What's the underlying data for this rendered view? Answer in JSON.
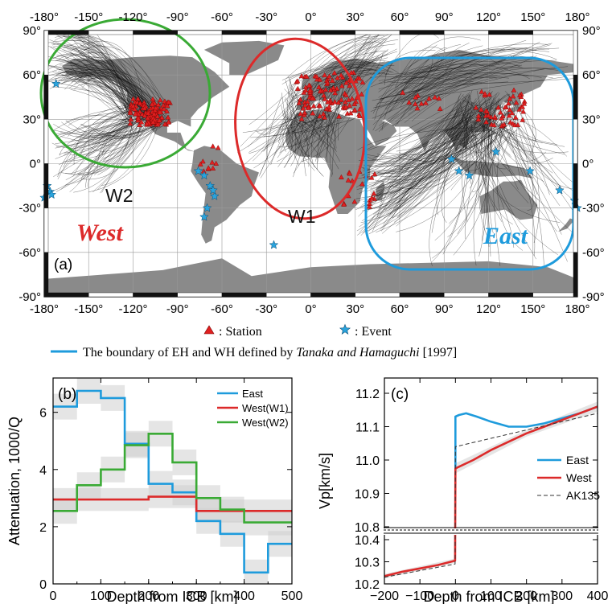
{
  "colors": {
    "land": "#8a8a8a",
    "ocean": "#ffffff",
    "paths": "#111111",
    "station": "#e02020",
    "event": "#2aa3dc",
    "east": "#1e9bdc",
    "west": "#dc2a2a",
    "w2": "#3aaa35",
    "uncertainty": "#cfcfcf"
  },
  "map": {
    "panel_label": "(a)",
    "lon_ticks": [
      "-180°",
      "-150°",
      "-120°",
      "-90°",
      "-60°",
      "-30°",
      "0°",
      "30°",
      "60°",
      "90°",
      "120°",
      "150°",
      "180°"
    ],
    "lat_ticks": [
      "90°",
      "60°",
      "30°",
      "0°",
      "-30°",
      "-60°",
      "-90°"
    ],
    "region_labels": {
      "w1": "W1",
      "w2": "W2",
      "west": "West",
      "east": "East"
    },
    "legend": {
      "station_label": ": Station",
      "event_label": ": Event",
      "boundary_text": "The boundary of EH and WH defined by ",
      "boundary_ref_authors": "Tanaka and Hamaguchi",
      "boundary_ref_year": " [1997]"
    }
  },
  "chart_data": [
    {
      "type": "line",
      "panel_label": "(b)",
      "xlabel": "Depth from ICB [km]",
      "ylabel": "Attenuation, 1000/Q",
      "xlim": [
        0,
        500
      ],
      "ylim": [
        0,
        7.2
      ],
      "x_ticks": [
        0,
        100,
        200,
        300,
        400,
        500
      ],
      "y_ticks": [
        0,
        2,
        4,
        6
      ],
      "step": true,
      "bin_edges": [
        0,
        50,
        100,
        150,
        200,
        250,
        300,
        350,
        400,
        450,
        500
      ],
      "series": [
        {
          "name": "East",
          "color": "#1e9bdc",
          "values": [
            6.2,
            6.75,
            6.5,
            4.9,
            3.5,
            3.2,
            2.2,
            1.75,
            0.4,
            1.4
          ],
          "band": 0.45
        },
        {
          "name": "West(W1)",
          "color": "#dc2a2a",
          "values": [
            2.95,
            2.95,
            2.95,
            2.95,
            3.05,
            3.05,
            2.55,
            2.55,
            2.55,
            2.55
          ],
          "band": 0.4
        },
        {
          "name": "West(W2)",
          "color": "#3aaa35",
          "values": [
            2.55,
            3.45,
            4.0,
            4.85,
            5.25,
            4.25,
            3.0,
            2.6,
            2.15,
            2.15
          ],
          "band": 0.45
        }
      ],
      "legend_position": "top-right",
      "grid": false
    },
    {
      "type": "line",
      "panel_label": "(c)",
      "xlabel": "Depth from ICB [km]",
      "ylabel": "Vp[km/s]",
      "xlim": [
        -200,
        400
      ],
      "x_ticks": [
        -200,
        -100,
        0,
        100,
        200,
        300,
        400
      ],
      "y_ticks_upper": [
        "10.8",
        "10.9",
        "11.0",
        "11.1",
        "11.2"
      ],
      "y_ticks_lower": [
        "10.2",
        "10.3",
        "10.4"
      ],
      "y_break": true,
      "series": [
        {
          "name": "East",
          "color": "#1e9bdc",
          "x": [
            0,
            0,
            10,
            30,
            60,
            100,
            150,
            200,
            250,
            300,
            350,
            400
          ],
          "y": [
            10.97,
            11.13,
            11.135,
            11.14,
            11.13,
            11.115,
            11.1,
            11.1,
            11.11,
            11.125,
            11.14,
            11.16
          ]
        },
        {
          "name": "West",
          "color": "#dc2a2a",
          "x": [
            -200,
            -150,
            -100,
            -50,
            -1,
            0,
            50,
            100,
            150,
            200,
            250,
            300,
            350,
            400
          ],
          "y": [
            10.235,
            10.255,
            10.27,
            10.285,
            10.305,
            10.975,
            11.0,
            11.03,
            11.055,
            11.08,
            11.1,
            11.12,
            11.14,
            11.16
          ]
        },
        {
          "name": "AK135",
          "color": "#333333",
          "dashed": true,
          "x": [
            -200,
            -1,
            0,
            100,
            200,
            300,
            400
          ],
          "y": [
            10.23,
            10.29,
            11.04,
            11.065,
            11.09,
            11.115,
            11.14
          ]
        }
      ],
      "legend_position": "right",
      "grid": false
    }
  ]
}
